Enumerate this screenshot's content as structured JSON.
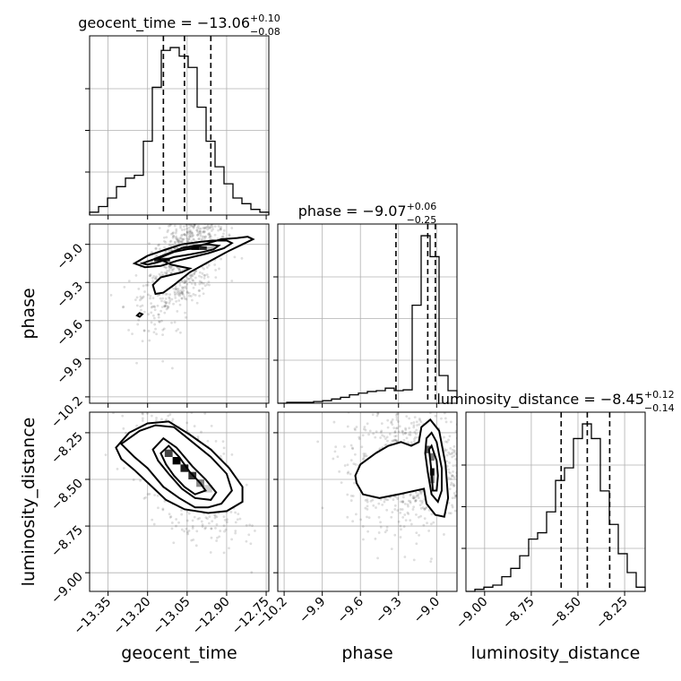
{
  "chart_data": {
    "type": "corner",
    "parameters": [
      "geocent_time",
      "phase",
      "luminosity_distance"
    ],
    "titles": [
      {
        "param": "geocent_time",
        "prefix": "geocent_time = −13.06",
        "plus": "+0.10",
        "minus": "−0.08"
      },
      {
        "param": "phase",
        "prefix": "phase = −9.07",
        "plus": "+0.06",
        "minus": "−0.25"
      },
      {
        "param": "luminosity_distance",
        "prefix": "luminosity_distance = −8.45",
        "plus": "+0.12",
        "minus": "−0.14"
      }
    ],
    "axes": {
      "geocent_time": {
        "range": [
          -13.42,
          -12.74
        ],
        "ticks": [
          -13.35,
          -13.2,
          -13.05,
          -12.9,
          -12.75
        ],
        "tick_labels": [
          "−13.35",
          "−13.20",
          "−13.05",
          "−12.90",
          "−12.75"
        ],
        "quantiles": [
          -13.14,
          -13.06,
          -12.96
        ]
      },
      "phase": {
        "range": [
          -10.25,
          -8.84
        ],
        "ticks": [
          -10.2,
          -9.9,
          -9.6,
          -9.3,
          -9.0
        ],
        "tick_labels": [
          "−10.2",
          "−9.9",
          "−9.6",
          "−9.3",
          "−9.0"
        ],
        "quantiles": [
          -9.32,
          -9.07,
          -9.01
        ]
      },
      "luminosity_distance": {
        "range": [
          -9.1,
          -8.14
        ],
        "ticks": [
          -9.0,
          -8.75,
          -8.5,
          -8.25
        ],
        "tick_labels": [
          "−9.00",
          "−8.75",
          "−8.50",
          "−8.25"
        ],
        "quantiles": [
          -8.59,
          -8.45,
          -8.33
        ]
      }
    },
    "histograms": {
      "geocent_time": {
        "edges": [
          -13.42,
          -13.386,
          -13.352,
          -13.318,
          -13.284,
          -13.25,
          -13.216,
          -13.182,
          -13.148,
          -13.114,
          -13.08,
          -13.046,
          -13.012,
          -12.978,
          -12.944,
          -12.91,
          -12.876,
          -12.842,
          -12.808,
          -12.774,
          -12.74
        ],
        "counts": [
          1,
          3,
          6,
          10,
          13,
          14,
          26,
          45,
          58,
          59,
          56,
          52,
          38,
          26,
          17,
          11,
          6,
          4,
          2,
          1
        ]
      },
      "phase": {
        "edges": [
          -10.25,
          -10.1795,
          -10.109,
          -10.0385,
          -9.968,
          -9.8975,
          -9.827,
          -9.7565,
          -9.686,
          -9.6155,
          -9.545,
          -9.4745,
          -9.404,
          -9.3335,
          -9.263,
          -9.1925,
          -9.122,
          -9.0515,
          -8.981,
          -8.9105,
          -8.84
        ],
        "counts": [
          0,
          1,
          1,
          1,
          2,
          3,
          5,
          7,
          10,
          12,
          14,
          15,
          18,
          15,
          16,
          117,
          200,
          175,
          33,
          15
        ]
      },
      "luminosity_distance": {
        "edges": [
          -9.1,
          -9.052,
          -9.004,
          -8.956,
          -8.908,
          -8.86,
          -8.812,
          -8.764,
          -8.716,
          -8.668,
          -8.62,
          -8.572,
          -8.524,
          -8.476,
          -8.428,
          -8.38,
          -8.332,
          -8.284,
          -8.236,
          -8.188,
          -8.14
        ],
        "counts": [
          0,
          1,
          2,
          3,
          7,
          11,
          17,
          25,
          28,
          38,
          53,
          59,
          73,
          80,
          73,
          48,
          32,
          18,
          9,
          2
        ]
      }
    },
    "pairs": [
      {
        "x": "geocent_time",
        "y": "phase",
        "contours": [
          [
            [
              -13.22,
              -9.15
            ],
            [
              -13.18,
              -9.12
            ],
            [
              -13.12,
              -9.07
            ],
            [
              -13.07,
              -9.03
            ],
            [
              -13.02,
              -9.01
            ],
            [
              -12.97,
              -9.0
            ],
            [
              -12.93,
              -9.01
            ],
            [
              -12.95,
              -9.04
            ],
            [
              -12.99,
              -9.06
            ],
            [
              -13.04,
              -9.08
            ],
            [
              -13.1,
              -9.1
            ],
            [
              -13.16,
              -9.14
            ],
            [
              -13.2,
              -9.16
            ]
          ],
          [
            [
              -13.25,
              -9.15
            ],
            [
              -13.2,
              -9.09
            ],
            [
              -13.13,
              -9.04
            ],
            [
              -13.07,
              -9.0
            ],
            [
              -13.0,
              -8.98
            ],
            [
              -12.95,
              -8.97
            ],
            [
              -12.9,
              -8.97
            ],
            [
              -12.88,
              -8.99
            ],
            [
              -12.91,
              -9.03
            ],
            [
              -12.97,
              -9.07
            ],
            [
              -13.03,
              -9.1
            ],
            [
              -13.09,
              -9.13
            ],
            [
              -13.15,
              -9.17
            ],
            [
              -13.21,
              -9.18
            ]
          ],
          [
            [
              -13.17,
              -9.39
            ],
            [
              -13.18,
              -9.32
            ],
            [
              -13.15,
              -9.26
            ],
            [
              -13.07,
              -9.22
            ],
            [
              -13.04,
              -9.19
            ],
            [
              -13.11,
              -9.16
            ],
            [
              -13.16,
              -9.11
            ],
            [
              -13.1,
              -9.06
            ],
            [
              -13.03,
              -9.03
            ],
            [
              -12.97,
              -8.99
            ],
            [
              -12.92,
              -8.96
            ],
            [
              -12.86,
              -8.95
            ],
            [
              -12.82,
              -8.94
            ],
            [
              -12.8,
              -8.96
            ],
            [
              -12.84,
              -9.0
            ],
            [
              -12.9,
              -9.06
            ],
            [
              -12.97,
              -9.14
            ],
            [
              -13.04,
              -9.22
            ],
            [
              -13.1,
              -9.32
            ],
            [
              -13.14,
              -9.38
            ]
          ],
          [
            [
              -13.24,
              -9.56
            ],
            [
              -13.23,
              -9.54
            ],
            [
              -13.22,
              -9.55
            ],
            [
              -13.23,
              -9.57
            ]
          ]
        ],
        "peaks": [
          {
            "x": -13.16,
            "y": -9.12,
            "w": 0.03,
            "h": 0.028,
            "shade": "#1a1a1a"
          },
          {
            "x": -13.13,
            "y": -9.12,
            "w": 0.03,
            "h": 0.028,
            "shade": "#1a1a1a"
          },
          {
            "x": -13.05,
            "y": -9.03,
            "w": 0.03,
            "h": 0.028,
            "shade": "#444444"
          },
          {
            "x": -13.02,
            "y": -9.03,
            "w": 0.03,
            "h": 0.028,
            "shade": "#000000"
          },
          {
            "x": -12.99,
            "y": -9.03,
            "w": 0.03,
            "h": 0.028,
            "shade": "#222222"
          },
          {
            "x": -12.96,
            "y": -9.03,
            "w": 0.03,
            "h": 0.028,
            "shade": "#bbbbbb"
          }
        ],
        "scatter": {
          "n": 900,
          "cx": -13.06,
          "cy": -9.12,
          "sx": 0.08,
          "sy": 0.24,
          "rho": 0.6
        }
      },
      {
        "x": "geocent_time",
        "y": "luminosity_distance",
        "contours": [
          [
            [
              -13.15,
              -8.36
            ],
            [
              -13.12,
              -8.32
            ],
            [
              -13.08,
              -8.38
            ],
            [
              -13.04,
              -8.46
            ],
            [
              -13.0,
              -8.52
            ],
            [
              -12.98,
              -8.56
            ],
            [
              -13.02,
              -8.58
            ],
            [
              -13.06,
              -8.54
            ],
            [
              -13.1,
              -8.48
            ],
            [
              -13.13,
              -8.42
            ]
          ],
          [
            [
              -13.18,
              -8.34
            ],
            [
              -13.14,
              -8.28
            ],
            [
              -13.09,
              -8.33
            ],
            [
              -13.03,
              -8.43
            ],
            [
              -12.98,
              -8.5
            ],
            [
              -12.94,
              -8.57
            ],
            [
              -12.96,
              -8.61
            ],
            [
              -13.02,
              -8.6
            ],
            [
              -13.07,
              -8.55
            ],
            [
              -13.12,
              -8.47
            ],
            [
              -13.16,
              -8.4
            ]
          ],
          [
            [
              -13.3,
              -8.31
            ],
            [
              -13.23,
              -8.24
            ],
            [
              -13.17,
              -8.21
            ],
            [
              -13.1,
              -8.22
            ],
            [
              -13.03,
              -8.3
            ],
            [
              -12.96,
              -8.38
            ],
            [
              -12.9,
              -8.47
            ],
            [
              -12.88,
              -8.56
            ],
            [
              -12.92,
              -8.63
            ],
            [
              -12.97,
              -8.65
            ],
            [
              -13.02,
              -8.65
            ],
            [
              -13.08,
              -8.6
            ],
            [
              -13.14,
              -8.54
            ],
            [
              -13.2,
              -8.44
            ],
            [
              -13.25,
              -8.38
            ]
          ],
          [
            [
              -13.32,
              -8.33
            ],
            [
              -13.27,
              -8.25
            ],
            [
              -13.2,
              -8.2
            ],
            [
              -13.12,
              -8.19
            ],
            [
              -13.04,
              -8.26
            ],
            [
              -12.96,
              -8.34
            ],
            [
              -12.89,
              -8.44
            ],
            [
              -12.84,
              -8.54
            ],
            [
              -12.84,
              -8.62
            ],
            [
              -12.9,
              -8.67
            ],
            [
              -12.97,
              -8.68
            ],
            [
              -13.06,
              -8.66
            ],
            [
              -13.13,
              -8.61
            ],
            [
              -13.19,
              -8.53
            ],
            [
              -13.25,
              -8.45
            ],
            [
              -13.3,
              -8.39
            ]
          ]
        ],
        "peaks": [
          {
            "x": -13.12,
            "y": -8.36,
            "w": 0.03,
            "h": 0.04,
            "shade": "#444444"
          },
          {
            "x": -13.09,
            "y": -8.4,
            "w": 0.03,
            "h": 0.04,
            "shade": "#000000"
          },
          {
            "x": -13.06,
            "y": -8.44,
            "w": 0.03,
            "h": 0.04,
            "shade": "#1a1a1a"
          },
          {
            "x": -13.03,
            "y": -8.48,
            "w": 0.03,
            "h": 0.04,
            "shade": "#333333"
          },
          {
            "x": -13.0,
            "y": -8.52,
            "w": 0.03,
            "h": 0.04,
            "shade": "#888888"
          },
          {
            "x": -12.97,
            "y": -8.55,
            "w": 0.03,
            "h": 0.04,
            "shade": "#cccccc"
          }
        ],
        "scatter": {
          "n": 900,
          "cx": -13.06,
          "cy": -8.46,
          "sx": 0.09,
          "sy": 0.16,
          "rho": -0.55
        }
      },
      {
        "x": "phase",
        "y": "luminosity_distance",
        "contours": [
          [
            [
              -9.06,
              -8.34
            ],
            [
              -9.04,
              -8.32
            ],
            [
              -9.0,
              -8.4
            ],
            [
              -8.99,
              -8.48
            ],
            [
              -9.0,
              -8.56
            ],
            [
              -9.03,
              -8.56
            ],
            [
              -9.04,
              -8.46
            ]
          ],
          [
            [
              -9.08,
              -8.28
            ],
            [
              -9.04,
              -8.25
            ],
            [
              -9.0,
              -8.3
            ],
            [
              -8.96,
              -8.44
            ],
            [
              -8.96,
              -8.56
            ],
            [
              -8.99,
              -8.62
            ],
            [
              -9.04,
              -8.58
            ],
            [
              -9.07,
              -8.46
            ],
            [
              -9.09,
              -8.36
            ]
          ],
          [
            [
              -9.12,
              -8.22
            ],
            [
              -9.05,
              -8.18
            ],
            [
              -8.98,
              -8.24
            ],
            [
              -8.93,
              -8.42
            ],
            [
              -8.91,
              -8.6
            ],
            [
              -8.94,
              -8.7
            ],
            [
              -9.01,
              -8.69
            ],
            [
              -9.08,
              -8.63
            ],
            [
              -9.1,
              -8.55
            ],
            [
              -9.3,
              -8.58
            ],
            [
              -9.45,
              -8.6
            ],
            [
              -9.58,
              -8.58
            ],
            [
              -9.63,
              -8.52
            ],
            [
              -9.64,
              -8.48
            ],
            [
              -9.6,
              -8.42
            ],
            [
              -9.48,
              -8.36
            ],
            [
              -9.38,
              -8.32
            ],
            [
              -9.28,
              -8.3
            ],
            [
              -9.2,
              -8.32
            ],
            [
              -9.14,
              -8.3
            ]
          ]
        ],
        "peaks": [
          {
            "x": -9.07,
            "y": -8.34,
            "w": 0.035,
            "h": 0.04,
            "shade": "#555555"
          },
          {
            "x": -9.035,
            "y": -8.38,
            "w": 0.035,
            "h": 0.04,
            "shade": "#777777"
          },
          {
            "x": -9.035,
            "y": -8.46,
            "w": 0.035,
            "h": 0.04,
            "shade": "#111111"
          },
          {
            "x": -9.035,
            "y": -8.5,
            "w": 0.035,
            "h": 0.04,
            "shade": "#888888"
          }
        ],
        "scatter": {
          "n": 900,
          "cx": -9.2,
          "cy": -8.44,
          "sx": 0.25,
          "sy": 0.16,
          "rho": 0.0
        }
      }
    ],
    "grid": true
  }
}
